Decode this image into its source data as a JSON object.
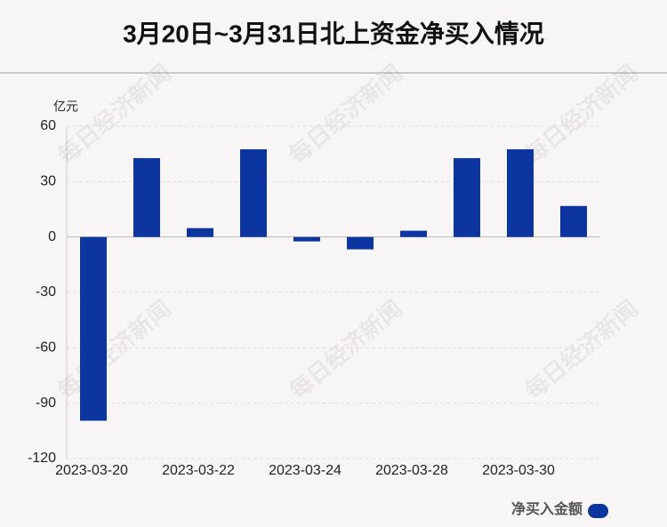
{
  "chart_data": {
    "type": "bar",
    "title": "3月20日~3月31日北上资金净买入情况",
    "y_label": "亿元",
    "categories": [
      "2023-03-20",
      null,
      "2023-03-22",
      null,
      "2023-03-24",
      null,
      "2023-03-28",
      null,
      "2023-03-30",
      null
    ],
    "series": [
      {
        "name": "净买入金额",
        "color": "#0d35a0",
        "values": [
          -99.5,
          42.7,
          4.8,
          47.5,
          -2.4,
          -6.7,
          3.4,
          42.7,
          47.5,
          16.8
        ]
      }
    ],
    "ylim": [
      -120,
      60
    ],
    "yticks": [
      -120,
      -90,
      -60,
      -30,
      0,
      30,
      60
    ],
    "grid": true,
    "watermark": "每日经济新闻"
  }
}
